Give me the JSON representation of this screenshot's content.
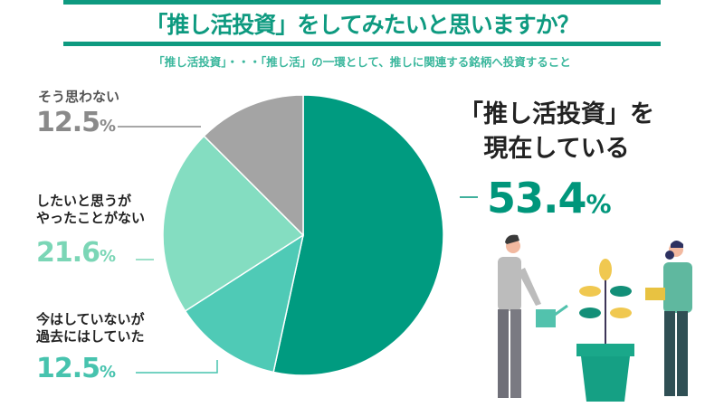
{
  "title": "「推し活投資」をしてみたいと思いますか？",
  "subtitle": "「推し活投資」・・・「推し活」の一環として、推しに関連する銘柄へ投資すること",
  "chart_data": {
    "type": "pie",
    "start": "top",
    "direction": "clockwise",
    "slices": [
      {
        "label": "「推し活投資」を現在している",
        "value": 53.4,
        "display": "53.4",
        "color": "#009b80",
        "label_color": "#00967b"
      },
      {
        "label": "今はしていないが過去にはしていた",
        "value": 12.5,
        "display": "12.5",
        "color": "#4fcab6",
        "label_color": "#47c3ae"
      },
      {
        "label": "したいと思うがやったことがない",
        "value": 21.6,
        "display": "21.6",
        "color": "#84ddc1",
        "label_color": "#7bd6b6"
      },
      {
        "label": "そう思わない",
        "value": 12.5,
        "display": "12.5",
        "color": "#a4a4a4",
        "label_color": "#8a8a8a"
      }
    ],
    "unit": "%"
  },
  "labels": {
    "current_line1": "「推し活投資」を",
    "current_line2": "現在している",
    "past_line1": "今はしていないが",
    "past_line2": "過去にはしていた",
    "want_line1": "したいと思うが",
    "want_line2": "やったことがない",
    "no": "そう思わない"
  }
}
